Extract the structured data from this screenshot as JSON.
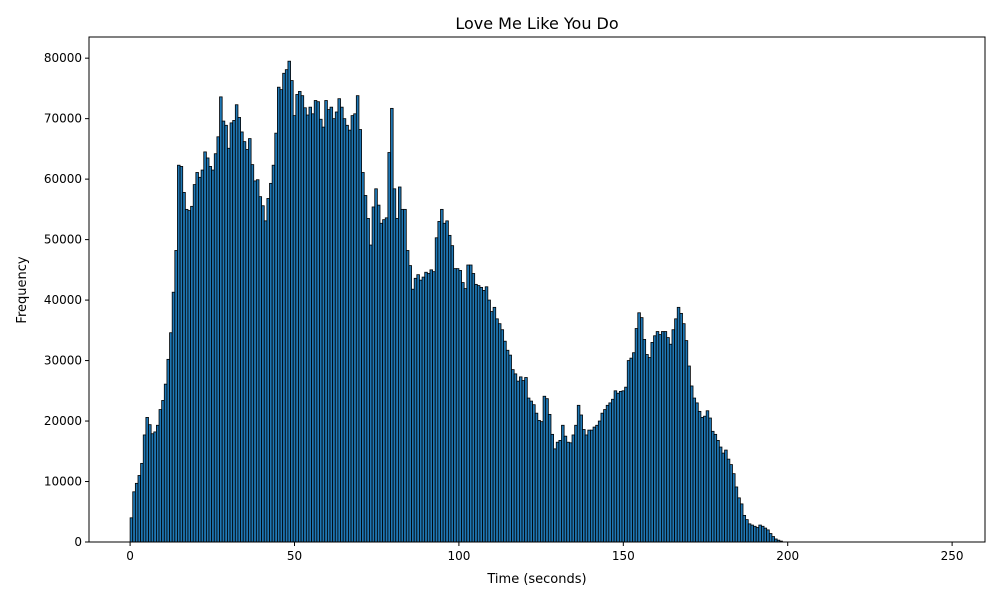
{
  "chart_data": {
    "type": "bar",
    "title": "Love Me Like You Do",
    "xlabel": "Time (seconds)",
    "ylabel": "Frequency",
    "xlim": [
      -12.5,
      260
    ],
    "ylim": [
      0,
      83500
    ],
    "grid": false,
    "bin_width": 0.8,
    "x_start": 0,
    "bar_color": "#1f77b4",
    "edge_color": "#000000",
    "xticks": [
      0,
      50,
      100,
      150,
      200,
      250
    ],
    "yticks": [
      0,
      10000,
      20000,
      30000,
      40000,
      50000,
      60000,
      70000,
      80000
    ],
    "values": [
      4000,
      8300,
      9700,
      11000,
      13000,
      17700,
      20600,
      19400,
      17900,
      18200,
      19300,
      21900,
      23400,
      26100,
      30200,
      34600,
      41300,
      48200,
      62300,
      62100,
      57800,
      55000,
      54800,
      55500,
      59100,
      61100,
      60300,
      61500,
      64500,
      63500,
      62100,
      61500,
      64200,
      67000,
      73600,
      69600,
      68900,
      65100,
      69300,
      69700,
      72300,
      70200,
      67800,
      66200,
      64900,
      66700,
      62400,
      59700,
      59900,
      57100,
      55600,
      53100,
      56800,
      59300,
      62300,
      67600,
      75200,
      74800,
      77500,
      78100,
      79500,
      76300,
      70500,
      74000,
      74500,
      73800,
      71800,
      70600,
      71900,
      70800,
      73000,
      72800,
      69900,
      68600,
      73000,
      71500,
      71900,
      70000,
      71100,
      73300,
      71900,
      70000,
      68900,
      68100,
      70500,
      70800,
      73800,
      68200,
      61100,
      57300,
      53500,
      49100,
      55400,
      58400,
      55700,
      52700,
      53300,
      53600,
      64400,
      71700,
      58400,
      53500,
      58700,
      55000,
      55000,
      48200,
      45700,
      41800,
      43600,
      44200,
      43300,
      43800,
      44600,
      44400,
      45000,
      44700,
      50300,
      53000,
      55000,
      52700,
      53100,
      50700,
      49000,
      45200,
      45200,
      44900,
      42900,
      41900,
      45800,
      45800,
      44400,
      42600,
      42400,
      42100,
      41600,
      42200,
      40000,
      38100,
      38800,
      36900,
      36100,
      35100,
      33200,
      31700,
      30900,
      28500,
      27800,
      26600,
      27300,
      26700,
      27200,
      23800,
      23300,
      22700,
      21300,
      20100,
      19900,
      24100,
      23700,
      21100,
      17800,
      15400,
      16500,
      16800,
      19300,
      17500,
      16500,
      16400,
      17700,
      19300,
      22600,
      21000,
      18600,
      17700,
      18500,
      18500,
      19000,
      19300,
      20000,
      21300,
      21900,
      22600,
      23000,
      23600,
      25000,
      24600,
      24900,
      25000,
      25600,
      30000,
      30400,
      31300,
      35300,
      37900,
      37100,
      33500,
      31000,
      30500,
      33000,
      34100,
      34800,
      34300,
      34800,
      34800,
      33800,
      32700,
      35100,
      36900,
      38800,
      37800,
      36100,
      33300,
      29100,
      25800,
      23800,
      23000,
      21600,
      20600,
      20800,
      21700,
      20500,
      18300,
      17800,
      16800,
      15700,
      14700,
      15200,
      13700,
      12800,
      11300,
      9100,
      7300,
      6300,
      4400,
      3700,
      3000,
      2800,
      2600,
      2400,
      2800,
      2600,
      2300,
      2000,
      1400,
      900,
      500,
      300,
      150
    ]
  }
}
